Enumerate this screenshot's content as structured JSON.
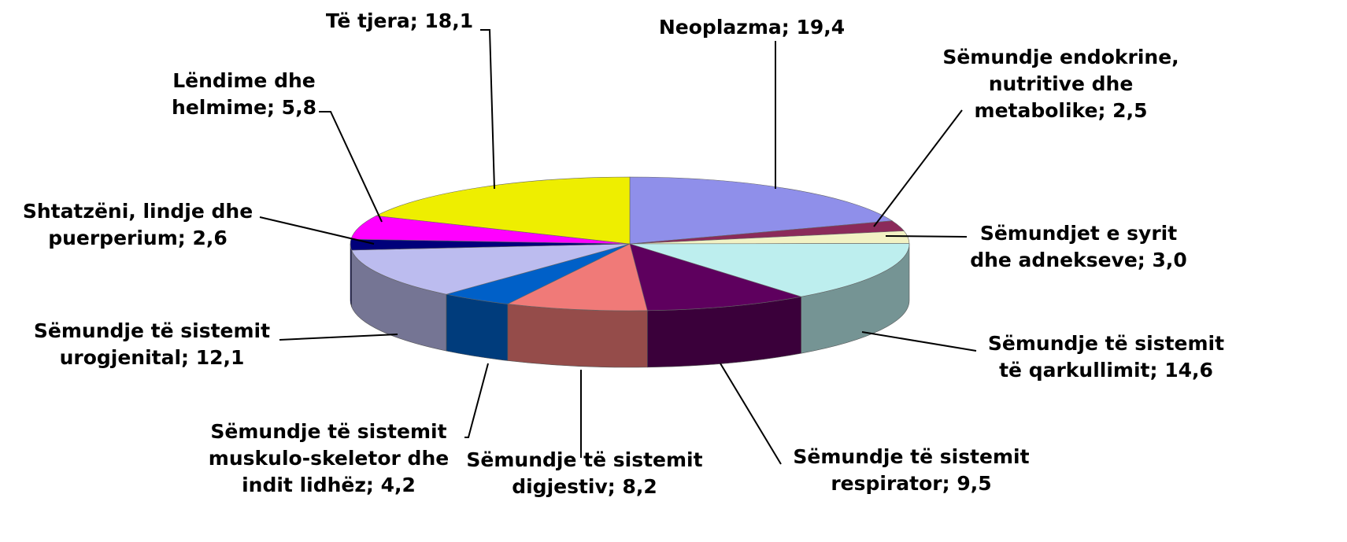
{
  "chart_data": {
    "type": "pie3d",
    "categories": [
      "Neoplazma",
      "Sëmundje endokrine, nutritive dhe metabolike",
      "Sëmundjet e syrit dhe adnekseve",
      "Sëmundje të sistemit të qarkullimit",
      "Sëmundje të sistemit respirator",
      "Sëmundje të sistemit digjestiv",
      "Sëmundje të sistemit muskulo-skeletor dhe indit lidhëz",
      "Sëmundje të sistemit urogjenital",
      "Shtatzëni, lindje dhe puerperium",
      "Lëndime dhe helmime",
      "Të tjera"
    ],
    "values": [
      19.4,
      2.5,
      3.0,
      14.6,
      9.5,
      8.2,
      4.2,
      12.1,
      2.6,
      5.8,
      18.1
    ],
    "value_labels": [
      "19,4",
      "2,5",
      "3,0",
      "14,6",
      "9,5",
      "8,2",
      "4,2",
      "12,1",
      "2,6",
      "5,8",
      "18,1"
    ],
    "label_separator": "; ",
    "colors": [
      "#8f8fea",
      "#8b2a5a",
      "#f2f2c4",
      "#bdeeee",
      "#5e005e",
      "#f07a78",
      "#0060c8",
      "#bcbcef",
      "#00007a",
      "#ff00ff",
      "#eeee00"
    ]
  }
}
